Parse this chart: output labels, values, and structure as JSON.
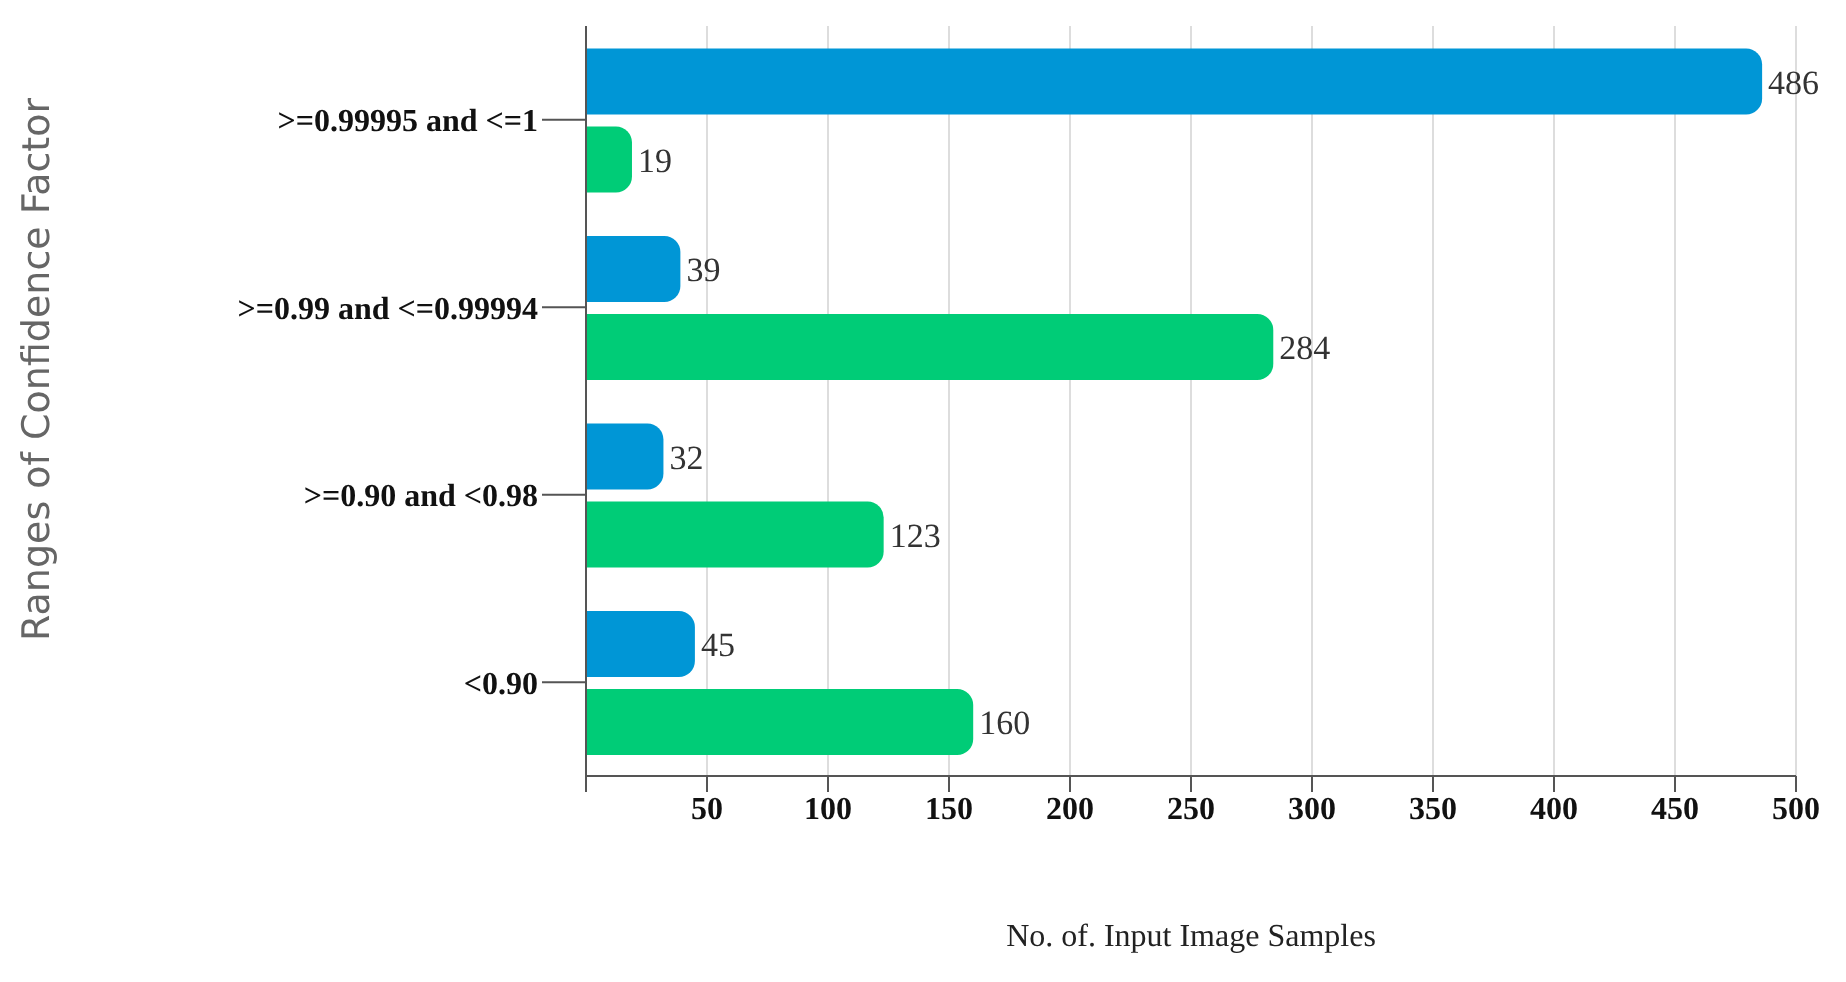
{
  "chart_data": {
    "type": "bar",
    "orientation": "horizontal",
    "xlabel": "No. of. Input Image Samples",
    "ylabel": "Ranges of Confidence Factor",
    "categories": [
      ">=0.99995 and <=1",
      ">=0.99 and <=0.99994",
      ">=0.90 and <0.98",
      "<0.90"
    ],
    "series": [
      {
        "color": "#0096d6",
        "values": [
          486,
          39,
          32,
          45
        ]
      },
      {
        "color": "#00cc77",
        "values": [
          19,
          284,
          123,
          160
        ]
      }
    ],
    "xlim": [
      0,
      500
    ],
    "xticks": [
      {
        "value": 0,
        "label": null
      },
      50,
      100,
      150,
      200,
      250,
      300,
      350,
      400,
      450,
      500
    ],
    "grid": "x",
    "data_labels": true
  }
}
